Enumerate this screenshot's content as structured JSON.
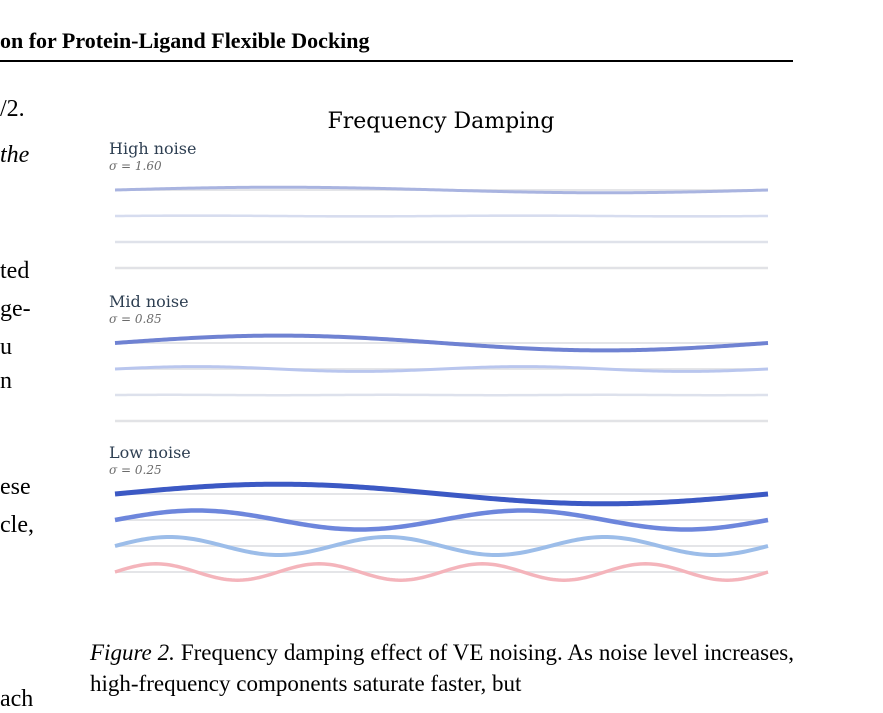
{
  "header": {
    "title": "on for Protein-Ligand Flexible Docking"
  },
  "left_fragments": [
    {
      "text": "/2.",
      "italic": false
    },
    {
      "text": "the",
      "italic": true
    },
    {
      "text": "ted",
      "italic": false
    },
    {
      "text": "ge-",
      "italic": false
    },
    {
      "text": "u",
      "italic": false
    },
    {
      "text": "n",
      "italic": false
    },
    {
      "text": "ese",
      "italic": false
    },
    {
      "text": "cle,",
      "italic": false
    },
    {
      "text": "ach",
      "italic": false
    }
  ],
  "figure": {
    "title": "Frequency Damping",
    "panels": [
      {
        "label": "High noise",
        "sigma": "σ = 1.60"
      },
      {
        "label": "Mid noise",
        "sigma": "σ = 0.85"
      },
      {
        "label": "Low noise",
        "sigma": "σ = 0.25"
      }
    ]
  },
  "caption": {
    "label": "Figure 2.",
    "text": "Frequency damping effect of VE noising. As noise level increases, high-frequency components saturate faster, but"
  },
  "chart_data": {
    "type": "line",
    "title": "Frequency Damping",
    "x_range": [
      0,
      1
    ],
    "grid": false,
    "legend": "none",
    "panels": [
      {
        "name": "High noise",
        "sigma": 1.6,
        "series": [
          {
            "frequency": 1,
            "amplitude": 0.28,
            "color": "#a9b4e0",
            "width": 3
          },
          {
            "frequency": 2,
            "amplitude": 0.04,
            "color": "#d6dcef",
            "width": 2.5
          },
          {
            "frequency": 3,
            "amplitude": 0.0,
            "color": "#dfe2ea",
            "width": 2.5
          },
          {
            "frequency": 4,
            "amplitude": 0.0,
            "color": "#e1e2e6",
            "width": 2.5
          }
        ]
      },
      {
        "name": "Mid noise",
        "sigma": 0.85,
        "series": [
          {
            "frequency": 1,
            "amplitude": 0.74,
            "color": "#6f82d2",
            "width": 4
          },
          {
            "frequency": 2,
            "amplitude": 0.24,
            "color": "#b9c6ee",
            "width": 3
          },
          {
            "frequency": 3,
            "amplitude": 0.02,
            "color": "#dde1ec",
            "width": 2.5
          },
          {
            "frequency": 4,
            "amplitude": 0.0,
            "color": "#e2e3e6",
            "width": 2.5
          }
        ]
      },
      {
        "name": "Low noise",
        "sigma": 0.25,
        "series": [
          {
            "frequency": 1,
            "amplitude": 0.98,
            "color": "#3c59c4",
            "width": 5
          },
          {
            "frequency": 2,
            "amplitude": 0.95,
            "color": "#6d86dc",
            "width": 4.5
          },
          {
            "frequency": 3,
            "amplitude": 0.9,
            "color": "#9cbde9",
            "width": 4
          },
          {
            "frequency": 4,
            "amplitude": 0.82,
            "color": "#f4b4bb",
            "width": 3.5
          }
        ]
      }
    ]
  }
}
